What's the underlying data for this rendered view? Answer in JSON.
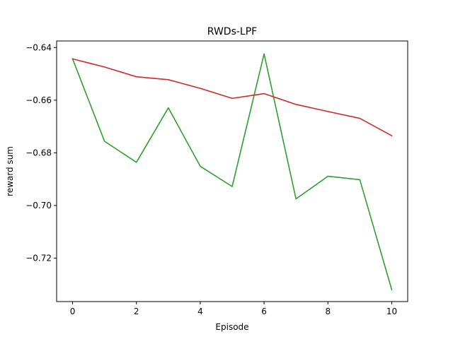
{
  "chart_data": {
    "type": "line",
    "title": "RWDs-LPF",
    "xlabel": "Episode",
    "ylabel": "reward sum",
    "xlim": [
      -0.5,
      10.5
    ],
    "ylim": [
      -0.7365,
      -0.6375
    ],
    "x_ticks": [
      0,
      2,
      4,
      6,
      8,
      10
    ],
    "y_ticks": [
      -0.72,
      -0.7,
      -0.68,
      -0.66,
      -0.64
    ],
    "y_tick_labels": [
      "−0.72",
      "−0.70",
      "−0.68",
      "−0.66",
      "−0.64"
    ],
    "grid": false,
    "x": [
      0,
      1,
      2,
      3,
      4,
      5,
      6,
      7,
      8,
      9,
      10
    ],
    "series": [
      {
        "color": "#2ca02c",
        "values": [
          -0.6443,
          -0.6756,
          -0.6836,
          -0.6629,
          -0.6851,
          -0.6928,
          -0.6424,
          -0.6975,
          -0.6889,
          -0.6902,
          -0.732
        ]
      },
      {
        "color": "#d62728",
        "values": [
          -0.6443,
          -0.6474,
          -0.6511,
          -0.6522,
          -0.6555,
          -0.6593,
          -0.6575,
          -0.6616,
          -0.6643,
          -0.6669,
          -0.6735
        ]
      }
    ]
  }
}
